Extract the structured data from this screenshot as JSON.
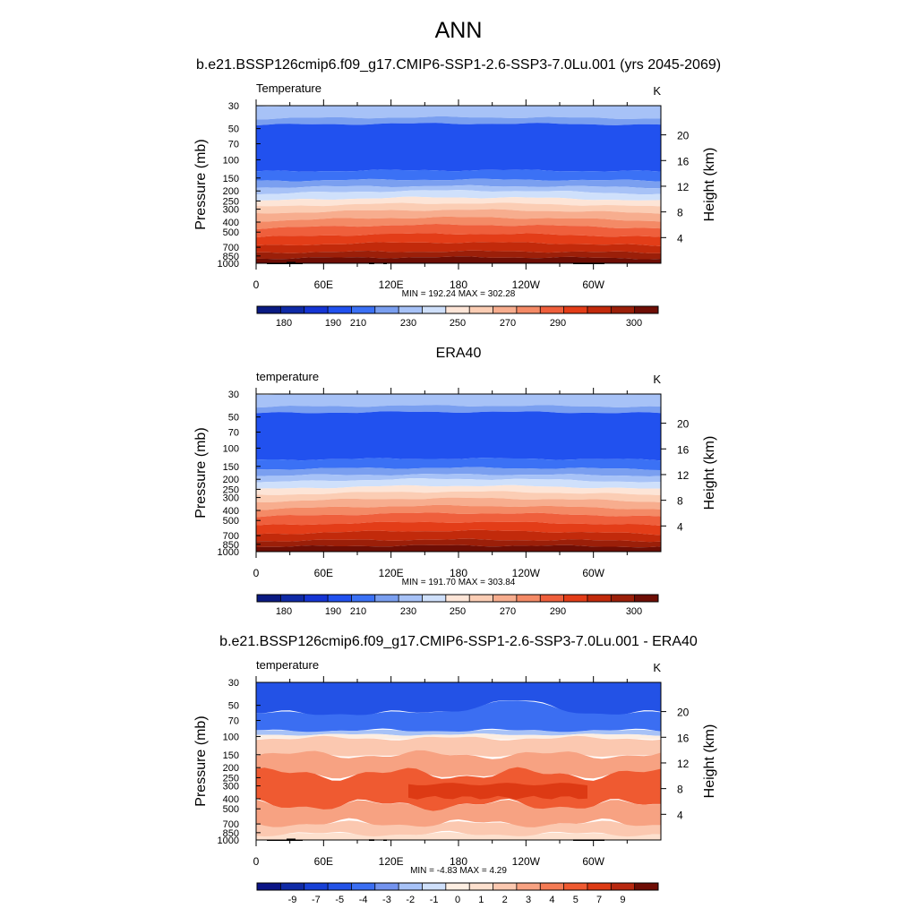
{
  "figure": {
    "title": "ANN"
  },
  "colors": {
    "abs_scale": [
      "#0a1a82",
      "#0f2aa6",
      "#1535d4",
      "#2151ef",
      "#3b71f5",
      "#7a9ff0",
      "#a7c2f7",
      "#cfe0fb",
      "#fde5d7",
      "#fbcdb4",
      "#f7ad8e",
      "#f48a66",
      "#ef5f3c",
      "#e33d18",
      "#c22a0b",
      "#9b1f09",
      "#6e0e05"
    ],
    "diff_scale": [
      "#0b1486",
      "#0f2aa6",
      "#1740d6",
      "#2352e6",
      "#3b6ef2",
      "#7393ee",
      "#a7c2f7",
      "#cfe0fb",
      "#fdeee2",
      "#fde0ce",
      "#fbc8b0",
      "#f7a282",
      "#f47b55",
      "#ef5a31",
      "#dd3a14",
      "#b82810",
      "#6f0d05"
    ],
    "topo": "#000000"
  },
  "chart_data": [
    {
      "type": "heatmap",
      "subtitle": "b.e21.BSSP126cmip6.f09_g17.CMIP6-SSP1-2.6-SSP3-7.0Lu.001 (yrs 2045-2069)",
      "left_title": "Temperature",
      "units": "K",
      "xlabel": "",
      "ylabel": "Pressure (mb)",
      "ylabel_right": "Height (km)",
      "x_tick_labels": [
        "0",
        "60E",
        "120E",
        "180",
        "120W",
        "60W"
      ],
      "x_ticks_deg": [
        0,
        60,
        120,
        180,
        240,
        300
      ],
      "xlim": [
        0,
        360
      ],
      "pressure_ticks": [
        30,
        50,
        70,
        100,
        150,
        200,
        250,
        300,
        400,
        500,
        700,
        850,
        1000
      ],
      "ylim_mb": [
        30,
        1000
      ],
      "height_ticks_km": [
        4,
        8,
        12,
        16,
        20
      ],
      "min_max": "MIN = 192.24  MAX = 302.28",
      "colorbar_labels": [
        "180",
        "190",
        "210",
        "230",
        "250",
        "270",
        "290",
        "300"
      ],
      "levels": [
        175,
        180,
        185,
        190,
        200,
        210,
        220,
        230,
        240,
        250,
        260,
        270,
        280,
        285,
        290,
        295,
        300
      ],
      "temperature_profile_K": [
        {
          "p": 30,
          "t": 218
        },
        {
          "p": 40,
          "t": 214
        },
        {
          "p": 50,
          "t": 208
        },
        {
          "p": 70,
          "t": 203
        },
        {
          "p": 100,
          "t": 203
        },
        {
          "p": 130,
          "t": 208
        },
        {
          "p": 150,
          "t": 212
        },
        {
          "p": 200,
          "t": 218
        },
        {
          "p": 250,
          "t": 226
        },
        {
          "p": 300,
          "t": 235
        },
        {
          "p": 400,
          "t": 250
        },
        {
          "p": 500,
          "t": 262
        },
        {
          "p": 700,
          "t": 279
        },
        {
          "p": 850,
          "t": 289
        },
        {
          "p": 1000,
          "t": 298
        }
      ],
      "topography": true
    },
    {
      "type": "heatmap",
      "subtitle": "ERA40",
      "left_title": "temperature",
      "units": "K",
      "xlabel": "",
      "ylabel": "Pressure (mb)",
      "ylabel_right": "Height (km)",
      "x_tick_labels": [
        "0",
        "60E",
        "120E",
        "180",
        "120W",
        "60W"
      ],
      "x_ticks_deg": [
        0,
        60,
        120,
        180,
        240,
        300
      ],
      "xlim": [
        0,
        360
      ],
      "pressure_ticks": [
        30,
        50,
        70,
        100,
        150,
        200,
        250,
        300,
        400,
        500,
        700,
        850,
        1000
      ],
      "ylim_mb": [
        30,
        1000
      ],
      "height_ticks_km": [
        4,
        8,
        12,
        16,
        20
      ],
      "min_max": "MIN = 191.70  MAX = 303.84",
      "colorbar_labels": [
        "180",
        "190",
        "210",
        "230",
        "250",
        "270",
        "290",
        "300"
      ],
      "levels": [
        175,
        180,
        185,
        190,
        200,
        210,
        220,
        230,
        240,
        250,
        260,
        270,
        280,
        285,
        290,
        295,
        300
      ],
      "temperature_profile_K": [
        {
          "p": 30,
          "t": 218
        },
        {
          "p": 40,
          "t": 214
        },
        {
          "p": 50,
          "t": 208
        },
        {
          "p": 70,
          "t": 203
        },
        {
          "p": 100,
          "t": 203
        },
        {
          "p": 130,
          "t": 208
        },
        {
          "p": 150,
          "t": 212
        },
        {
          "p": 200,
          "t": 218
        },
        {
          "p": 250,
          "t": 225
        },
        {
          "p": 300,
          "t": 233
        },
        {
          "p": 400,
          "t": 248
        },
        {
          "p": 500,
          "t": 260
        },
        {
          "p": 700,
          "t": 277
        },
        {
          "p": 850,
          "t": 287
        },
        {
          "p": 1000,
          "t": 297
        }
      ],
      "topography": false
    },
    {
      "type": "heatmap",
      "subtitle": "b.e21.BSSP126cmip6.f09_g17.CMIP6-SSP1-2.6-SSP3-7.0Lu.001 - ERA40",
      "left_title": "temperature",
      "units": "K",
      "xlabel": "",
      "ylabel": "Pressure (mb)",
      "ylabel_right": "Height (km)",
      "x_tick_labels": [
        "0",
        "60E",
        "120E",
        "180",
        "120W",
        "60W"
      ],
      "x_ticks_deg": [
        0,
        60,
        120,
        180,
        240,
        300
      ],
      "xlim": [
        0,
        360
      ],
      "pressure_ticks": [
        30,
        50,
        70,
        100,
        150,
        200,
        250,
        300,
        400,
        500,
        700,
        850,
        1000
      ],
      "ylim_mb": [
        30,
        1000
      ],
      "height_ticks_km": [
        4,
        8,
        12,
        16,
        20
      ],
      "min_max": "MIN =  -4.83  MAX =   4.29",
      "colorbar_labels": [
        "-9",
        "-7",
        "-5",
        "-4",
        "-3",
        "-2",
        "-1",
        "0",
        "1",
        "2",
        "3",
        "4",
        "5",
        "7",
        "9"
      ],
      "difference_profile_K": [
        {
          "p": 30,
          "t": -4.2
        },
        {
          "p": 50,
          "t": -4.0
        },
        {
          "p": 70,
          "t": -3.2
        },
        {
          "p": 85,
          "t": -1.5
        },
        {
          "p": 100,
          "t": 0.6
        },
        {
          "p": 130,
          "t": 1.5
        },
        {
          "p": 170,
          "t": 2.2
        },
        {
          "p": 220,
          "t": 3.0
        },
        {
          "p": 300,
          "t": 3.6
        },
        {
          "p": 450,
          "t": 3.1
        },
        {
          "p": 600,
          "t": 2.1
        },
        {
          "p": 800,
          "t": 1.4
        },
        {
          "p": 950,
          "t": 0.6
        },
        {
          "p": 1000,
          "t": 0.3
        }
      ],
      "topography": true
    }
  ]
}
